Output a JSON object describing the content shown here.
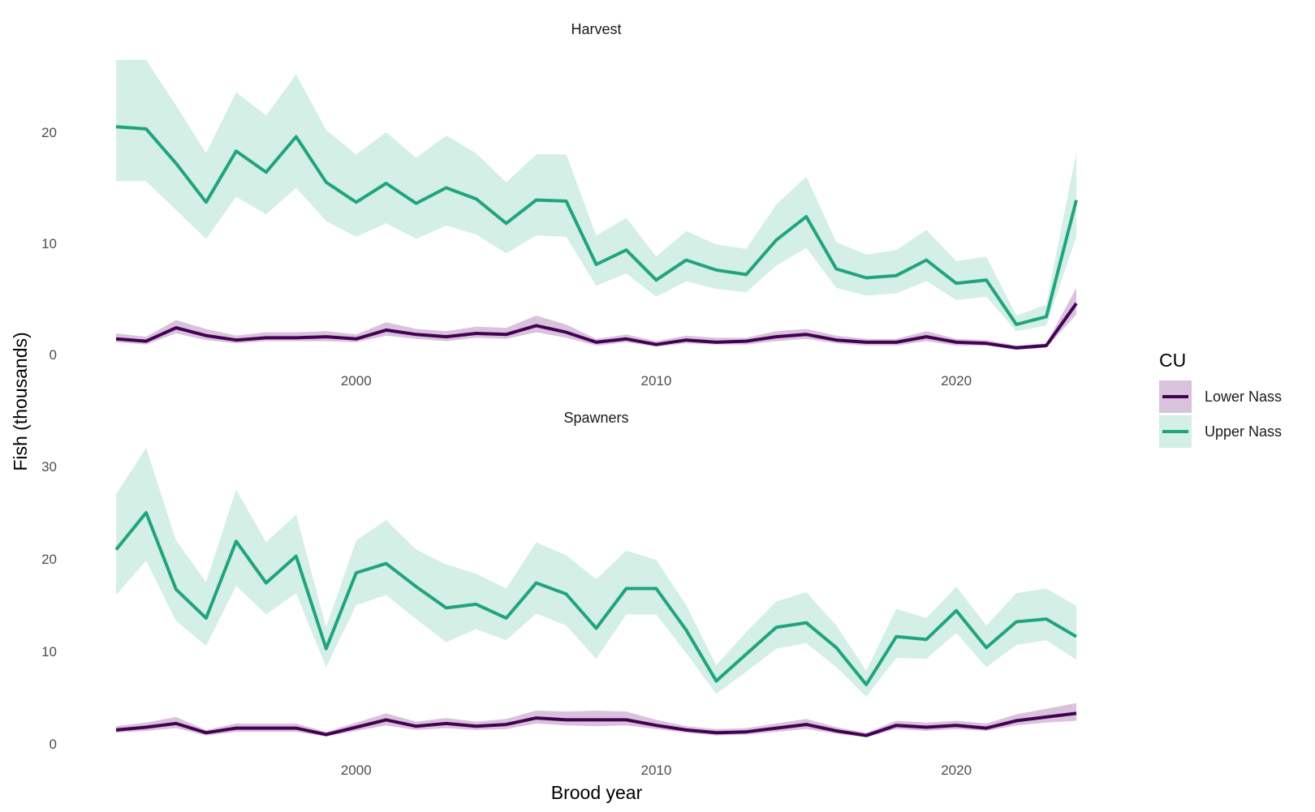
{
  "chart_data": {
    "type": "line",
    "xlabel": "Brood year",
    "ylabel": "Fish (thousands)",
    "x_ticks": [
      2000,
      2010,
      2020
    ],
    "x": [
      1992,
      1993,
      1994,
      1995,
      1996,
      1997,
      1998,
      1999,
      2000,
      2001,
      2002,
      2003,
      2004,
      2005,
      2006,
      2007,
      2008,
      2009,
      2010,
      2011,
      2012,
      2013,
      2014,
      2015,
      2016,
      2017,
      2018,
      2019,
      2020,
      2021,
      2022,
      2023,
      2024
    ],
    "xlim": [
      1992,
      2024
    ],
    "legend": {
      "title": "CU",
      "placement": "right",
      "entries": [
        "Lower Nass",
        "Upper Nass"
      ]
    },
    "colors": {
      "Lower Nass": "#440154",
      "Lower Nass band": "#d9c2dc",
      "Upper Nass": "#20a47f",
      "Upper Nass band": "#d3efe6"
    },
    "panels": [
      {
        "title": "Harvest",
        "ylim": [
          0,
          27
        ],
        "y_ticks": [
          0,
          10,
          20
        ],
        "series": [
          {
            "name": "Upper Nass",
            "values": [
              20.5,
              20.3,
              17.2,
              13.7,
              18.3,
              16.4,
              19.6,
              15.5,
              13.7,
              15.4,
              13.6,
              15.0,
              14.0,
              11.8,
              13.9,
              13.8,
              8.1,
              9.4,
              6.7,
              8.5,
              7.6,
              7.2,
              10.3,
              12.4,
              7.7,
              6.9,
              7.1,
              8.5,
              6.4,
              6.7,
              2.7,
              3.4,
              13.9
            ],
            "lower": [
              15.6,
              15.6,
              13.0,
              10.4,
              14.2,
              12.6,
              15.0,
              12.0,
              10.6,
              11.8,
              10.4,
              11.6,
              10.8,
              9.1,
              10.7,
              10.6,
              6.2,
              7.3,
              5.2,
              6.6,
              5.9,
              5.6,
              8.0,
              9.6,
              6.0,
              5.3,
              5.5,
              6.6,
              4.9,
              5.2,
              2.1,
              2.6,
              10.6
            ],
            "upper": [
              26.5,
              26.5,
              22.4,
              18.1,
              23.6,
              21.5,
              25.2,
              20.2,
              18.0,
              20.0,
              17.7,
              19.7,
              18.1,
              15.5,
              18.0,
              18.0,
              10.7,
              12.3,
              8.8,
              11.1,
              9.9,
              9.5,
              13.5,
              16.0,
              10.1,
              9.0,
              9.4,
              11.2,
              8.4,
              8.8,
              3.5,
              4.5,
              18.2
            ]
          },
          {
            "name": "Lower Nass",
            "values": [
              1.4,
              1.2,
              2.4,
              1.7,
              1.3,
              1.5,
              1.5,
              1.6,
              1.4,
              2.2,
              1.8,
              1.6,
              1.9,
              1.8,
              2.6,
              2.0,
              1.1,
              1.4,
              0.9,
              1.3,
              1.1,
              1.2,
              1.6,
              1.8,
              1.3,
              1.1,
              1.1,
              1.6,
              1.1,
              1.0,
              0.6,
              0.8,
              4.6
            ],
            "lower": [
              1.1,
              0.9,
              1.9,
              1.3,
              1.0,
              1.2,
              1.2,
              1.2,
              1.1,
              1.7,
              1.4,
              1.2,
              1.5,
              1.4,
              2.0,
              1.5,
              0.8,
              1.1,
              0.7,
              1.0,
              0.9,
              0.9,
              1.2,
              1.4,
              1.0,
              0.8,
              0.8,
              1.2,
              0.8,
              0.8,
              0.4,
              0.6,
              3.6
            ],
            "upper": [
              1.9,
              1.6,
              3.1,
              2.3,
              1.7,
              2.0,
              2.0,
              2.1,
              1.8,
              2.9,
              2.3,
              2.1,
              2.5,
              2.4,
              3.5,
              2.7,
              1.4,
              1.8,
              1.2,
              1.7,
              1.5,
              1.5,
              2.1,
              2.3,
              1.7,
              1.4,
              1.4,
              2.1,
              1.4,
              1.3,
              0.8,
              1.0,
              6.0
            ]
          }
        ]
      },
      {
        "title": "Spawners",
        "ylim": [
          0,
          34
        ],
        "y_ticks": [
          0,
          10,
          20,
          30
        ],
        "series": [
          {
            "name": "Upper Nass",
            "values": [
              21.0,
              25.0,
              16.7,
              13.6,
              21.9,
              17.4,
              20.3,
              10.3,
              18.5,
              19.5,
              17.0,
              14.7,
              15.1,
              13.6,
              17.4,
              16.2,
              12.5,
              16.8,
              16.8,
              12.3,
              6.8,
              9.7,
              12.6,
              13.1,
              10.4,
              6.4,
              11.6,
              11.3,
              14.4,
              10.4,
              13.2,
              13.5,
              11.6
            ],
            "lower": [
              16.1,
              19.8,
              13.3,
              10.6,
              17.1,
              14.0,
              16.3,
              8.3,
              15.0,
              16.1,
              13.5,
              11.0,
              12.4,
              11.2,
              14.1,
              12.8,
              9.2,
              14.0,
              14.0,
              9.8,
              5.4,
              7.8,
              10.3,
              10.9,
              8.3,
              5.1,
              9.3,
              9.2,
              12.0,
              8.3,
              10.7,
              11.2,
              9.1
            ],
            "upper": [
              27.0,
              32.0,
              22.0,
              17.5,
              27.5,
              21.8,
              24.8,
              12.6,
              22.0,
              24.2,
              21.0,
              19.4,
              18.4,
              16.8,
              21.8,
              20.4,
              17.8,
              20.9,
              19.9,
              15.0,
              8.5,
              12.1,
              15.4,
              16.4,
              12.8,
              7.9,
              14.6,
              13.6,
              17.0,
              12.8,
              16.3,
              16.8,
              14.9
            ]
          },
          {
            "name": "Lower Nass",
            "values": [
              1.5,
              1.8,
              2.2,
              1.2,
              1.7,
              1.7,
              1.7,
              1.0,
              1.8,
              2.6,
              1.9,
              2.2,
              1.9,
              2.1,
              2.8,
              2.6,
              2.6,
              2.6,
              2.0,
              1.5,
              1.2,
              1.3,
              1.7,
              2.1,
              1.4,
              0.9,
              2.0,
              1.8,
              2.0,
              1.7,
              2.5,
              2.9,
              3.3
            ],
            "lower": [
              1.2,
              1.4,
              1.7,
              0.9,
              1.3,
              1.3,
              1.3,
              0.8,
              1.4,
              2.0,
              1.5,
              1.7,
              1.5,
              1.6,
              2.2,
              2.0,
              1.9,
              2.0,
              1.6,
              1.2,
              0.9,
              1.0,
              1.3,
              1.6,
              1.1,
              0.7,
              1.6,
              1.4,
              1.6,
              1.4,
              2.0,
              2.3,
              2.5
            ],
            "upper": [
              1.9,
              2.3,
              2.9,
              1.5,
              2.2,
              2.2,
              2.2,
              1.3,
              2.3,
              3.3,
              2.4,
              2.8,
              2.4,
              2.7,
              3.6,
              3.5,
              3.6,
              3.5,
              2.6,
              1.9,
              1.6,
              1.7,
              2.2,
              2.7,
              1.8,
              1.2,
              2.5,
              2.3,
              2.5,
              2.2,
              3.2,
              3.8,
              4.4
            ]
          }
        ]
      }
    ]
  }
}
